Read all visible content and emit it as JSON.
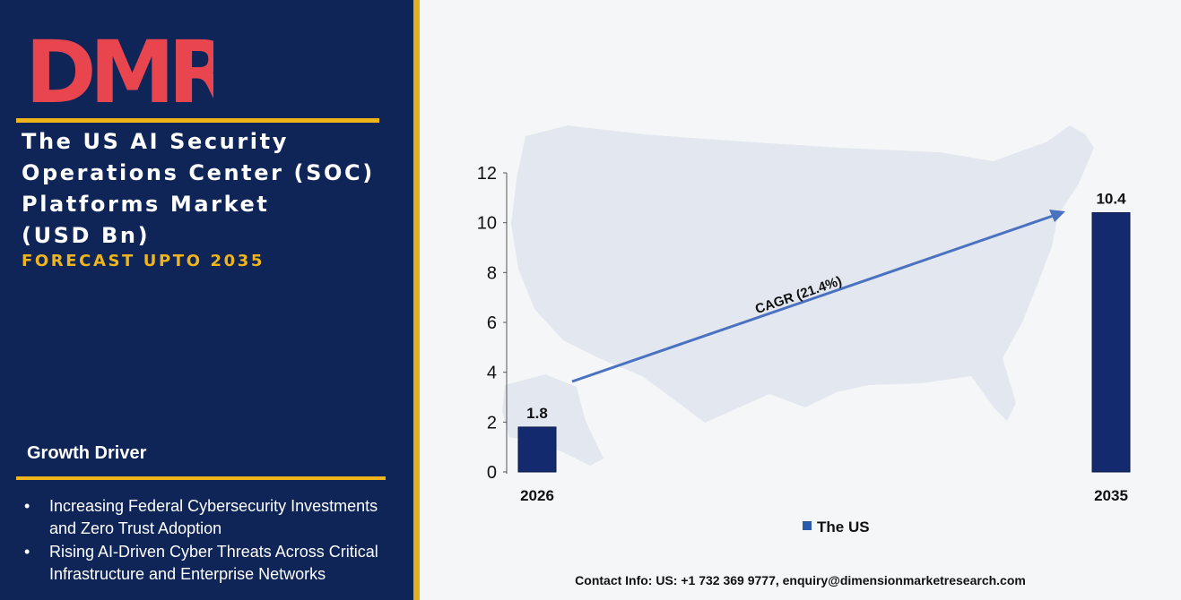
{
  "brand": {
    "logo_text": "DMR"
  },
  "title_lines": [
    "The US AI Security",
    "Operations Center (SOC)",
    "Platforms Market",
    "(USD Bn)"
  ],
  "subtitle": "FORECAST UPTO 2035",
  "growth_driver": {
    "heading": "Growth Driver",
    "bullet": "•",
    "items": [
      [
        "Increasing Federal Cybersecurity Investments",
        "and Zero Trust Adoption"
      ],
      [
        "Rising AI-Driven Cyber Threats Across Critical",
        "Infrastructure and Enterprise Networks"
      ]
    ]
  },
  "contact": "Contact Info: US: +1 732 369 9777, enquiry@dimensionmarketresearch.com",
  "colors": {
    "panel": "#0f2557",
    "gold": "#f0b51c",
    "bar": "#142a6e",
    "arrow": "#4a72c0",
    "map": "#e3e8f0"
  },
  "chart_data": {
    "type": "bar",
    "categories": [
      "2026",
      "2035"
    ],
    "series": [
      {
        "name": "The US",
        "values": [
          1.8,
          10.4
        ]
      }
    ],
    "data_labels": [
      "1.8",
      "10.4"
    ],
    "ylim": [
      0,
      12
    ],
    "yticks": [
      "0",
      "2",
      "4",
      "6",
      "8",
      "10",
      "12"
    ],
    "annotation": "CAGR (21.4%)",
    "legend": "bottom-center",
    "grid": false
  }
}
